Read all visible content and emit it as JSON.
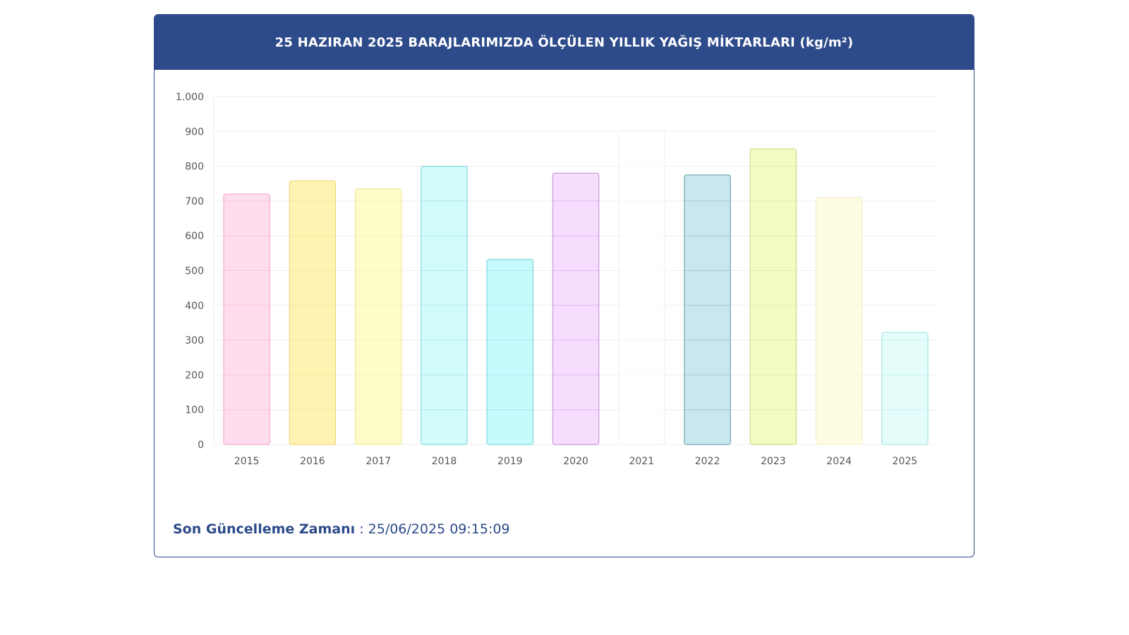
{
  "header": {
    "title": "25 HAZIRAN 2025 BARAJLARIMIZDA ÖLÇÜLEN YILLIK YAĞIŞ MİKTARLARI (kg/m²)"
  },
  "footer": {
    "label": "Son Güncelleme Zamanı",
    "separator": " : ",
    "value": "25/06/2025 09:15:09"
  },
  "chart_data": {
    "type": "bar",
    "title": "25 HAZIRAN 2025 BARAJLARIMIZDA ÖLÇÜLEN YILLIK YAĞIŞ MİKTARLARI (kg/m²)",
    "categories": [
      "2015",
      "2016",
      "2017",
      "2018",
      "2019",
      "2020",
      "2021",
      "2022",
      "2023",
      "2024",
      "2025"
    ],
    "values": [
      720,
      758,
      735,
      800,
      532,
      780,
      903,
      775,
      850,
      710,
      322
    ],
    "ylim": [
      0,
      1000
    ],
    "yticks": [
      0,
      100,
      200,
      300,
      400,
      500,
      600,
      700,
      800,
      900,
      1000
    ],
    "ytick_labels": [
      "0",
      "100",
      "200",
      "300",
      "400",
      "500",
      "600",
      "700",
      "800",
      "900",
      "1.000"
    ],
    "grid": true,
    "bar_fills": [
      "#ffdcee",
      "#fff3b3",
      "#fefcc8",
      "#d2fbfc",
      "#c6fbfd",
      "#f6dcfd",
      "#ffffff",
      "#c9e8ee",
      "#f4fbc2",
      "#fefde3",
      "#e4fdfb"
    ],
    "bar_strokes": [
      "#f3a9c9",
      "#f2d77a",
      "#efeaa5",
      "#8ad8dc",
      "#7fd6dc",
      "#c99ad8",
      "#f0f0f0",
      "#6fa7b0",
      "#cddb8a",
      "#f1efcf",
      "#a9e6e2"
    ]
  }
}
